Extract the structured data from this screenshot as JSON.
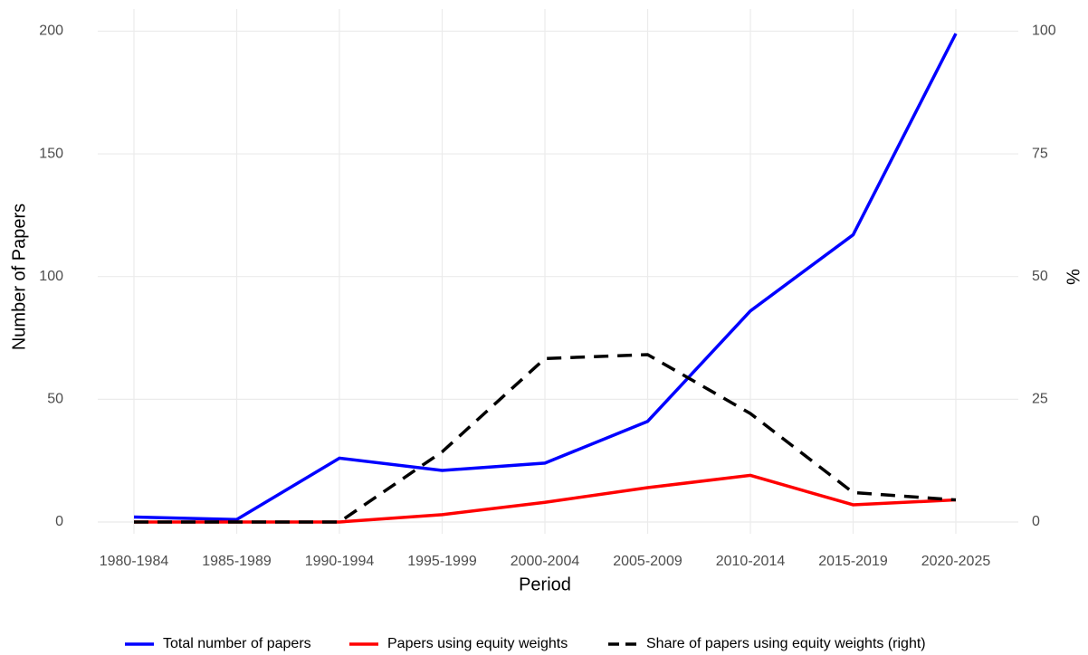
{
  "chart_data": {
    "type": "line",
    "x_label": "Period",
    "y_label": "Number of Papers",
    "y2_label": "%",
    "categories": [
      "1980-1984",
      "1985-1989",
      "1990-1994",
      "1995-1999",
      "2000-2004",
      "2005-2009",
      "2010-2014",
      "2015-2019",
      "2020-2025"
    ],
    "series": [
      {
        "name": "Total number of papers",
        "color": "#0000ff",
        "values": [
          2,
          1,
          26,
          21,
          24,
          41,
          86,
          117,
          199
        ]
      },
      {
        "name": "Papers using equity weights",
        "color": "#ff0000",
        "values": [
          0,
          0,
          0,
          3,
          8,
          14,
          19,
          7,
          9
        ]
      },
      {
        "name": "Share of papers using equity weights (right)",
        "color": "#000000",
        "dashed": true,
        "axis": "y2",
        "values": [
          0,
          0,
          0,
          14.3,
          33.3,
          34.1,
          22.1,
          6.0,
          4.5
        ]
      }
    ],
    "ylim": [
      -4.8,
      209
    ],
    "yticks": [
      0,
      50,
      100,
      150,
      200
    ],
    "y2lim": [
      -2.4,
      104.5
    ],
    "y2ticks": [
      0,
      25,
      50,
      75,
      100
    ],
    "grid": true,
    "legend": "bottom"
  }
}
